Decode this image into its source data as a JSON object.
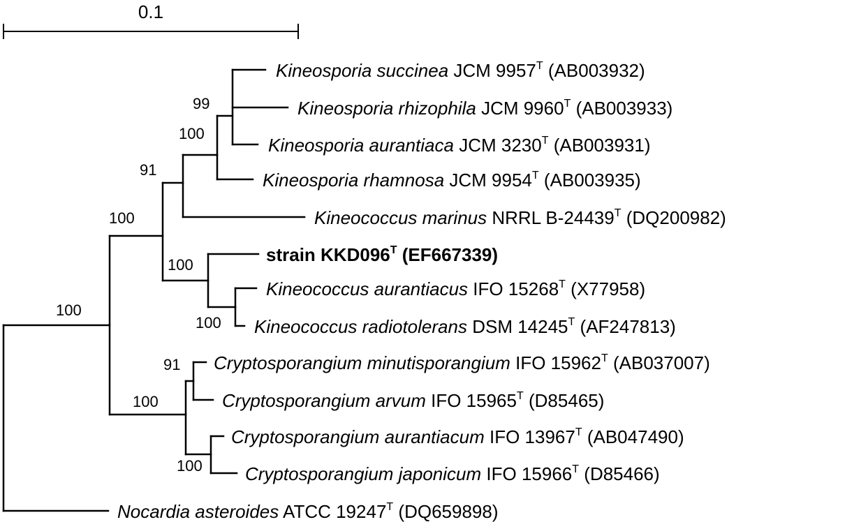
{
  "scale_bar": {
    "label": "0.1"
  },
  "bootstrap_values": [
    "99",
    "100",
    "91",
    "100",
    "100",
    "100",
    "100",
    "91",
    "100",
    "100"
  ],
  "taxa": [
    {
      "name": "Kineosporia succinea",
      "strain": "JCM 9957",
      "type_mark": "T",
      "accession": "(AB003932)",
      "bold": false
    },
    {
      "name": "Kineosporia rhizophila",
      "strain": "JCM 9960",
      "type_mark": "T",
      "accession": "(AB003933)",
      "bold": false
    },
    {
      "name": "Kineosporia aurantiaca",
      "strain": "JCM 3230",
      "type_mark": "T",
      "accession": "(AB003931)",
      "bold": false
    },
    {
      "name": "Kineosporia rhamnosa",
      "strain": "JCM 9954",
      "type_mark": "T",
      "accession": "(AB003935)",
      "bold": false
    },
    {
      "name": "Kineococcus marinus",
      "strain": "NRRL B-24439",
      "type_mark": "T",
      "accession": "(DQ200982)",
      "bold": false
    },
    {
      "name": "",
      "strain": "strain KKD096",
      "type_mark": "T",
      "accession": "(EF667339)",
      "bold": true
    },
    {
      "name": "Kineococcus aurantiacus",
      "strain": "IFO 15268",
      "type_mark": "T",
      "accession": "(X77958)",
      "bold": false
    },
    {
      "name": "Kineococcus radiotolerans",
      "strain": "DSM 14245",
      "type_mark": "T",
      "accession": "(AF247813)",
      "bold": false
    },
    {
      "name": "Cryptosporangium minutisporangium",
      "strain": "IFO 15962",
      "type_mark": "T",
      "accession": "(AB037007)",
      "bold": false
    },
    {
      "name": "Cryptosporangium arvum",
      "strain": "IFO 15965",
      "type_mark": "T",
      "accession": "(D85465)",
      "bold": false
    },
    {
      "name": "Cryptosporangium aurantiacum",
      "strain": "IFO 13967",
      "type_mark": "T",
      "accession": "(AB047490)",
      "bold": false
    },
    {
      "name": "Cryptosporangium japonicum",
      "strain": "IFO 15966",
      "type_mark": "T",
      "accession": "(D85466)",
      "bold": false
    },
    {
      "name": "Nocardia asteroides",
      "strain": "ATCC 19247",
      "type_mark": "T",
      "accession": "(DQ659898)",
      "bold": false
    }
  ]
}
